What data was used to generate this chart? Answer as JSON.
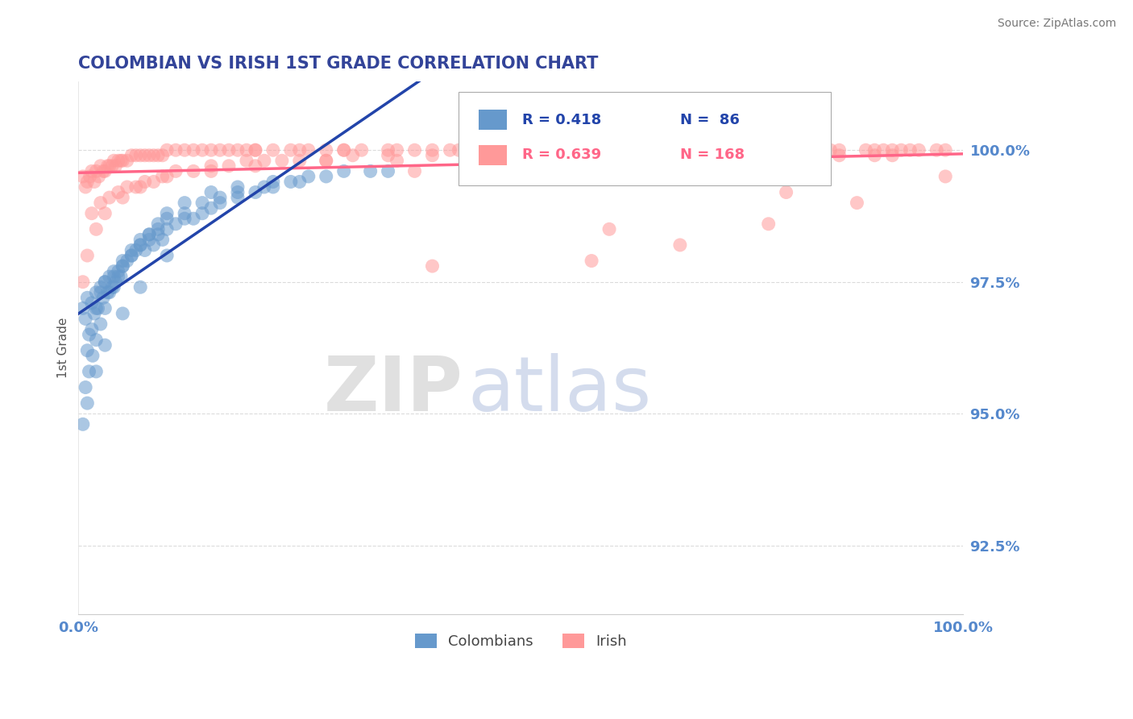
{
  "title": "COLOMBIAN VS IRISH 1ST GRADE CORRELATION CHART",
  "source": "Source: ZipAtlas.com",
  "xlabel_start": "0.0%",
  "xlabel_end": "100.0%",
  "ylabel": "1st Grade",
  "yticks": [
    92.5,
    95.0,
    97.5,
    100.0
  ],
  "ytick_labels": [
    "92.5%",
    "95.0%",
    "97.5%",
    "100.0%"
  ],
  "xlim": [
    0.0,
    1.0
  ],
  "ylim": [
    91.2,
    101.3
  ],
  "colombian_color": "#6699CC",
  "irish_color": "#FF9999",
  "colombian_line_color": "#2244AA",
  "irish_line_color": "#FF6688",
  "grid_color": "#CCCCCC",
  "title_color": "#334499",
  "tick_color": "#5588CC",
  "r_colombian": 0.418,
  "n_colombian": 86,
  "r_irish": 0.639,
  "n_irish": 168,
  "watermark_zip": "ZIP",
  "watermark_atlas": "atlas",
  "legend_labels": [
    "Colombians",
    "Irish"
  ],
  "colombian_x": [
    0.005,
    0.008,
    0.01,
    0.012,
    0.015,
    0.018,
    0.02,
    0.022,
    0.025,
    0.028,
    0.03,
    0.033,
    0.035,
    0.038,
    0.04,
    0.042,
    0.045,
    0.048,
    0.05,
    0.055,
    0.06,
    0.065,
    0.07,
    0.075,
    0.08,
    0.085,
    0.09,
    0.095,
    0.1,
    0.11,
    0.12,
    0.13,
    0.14,
    0.15,
    0.16,
    0.18,
    0.2,
    0.22,
    0.25,
    0.28,
    0.01,
    0.015,
    0.02,
    0.025,
    0.03,
    0.035,
    0.04,
    0.045,
    0.05,
    0.06,
    0.07,
    0.08,
    0.09,
    0.1,
    0.12,
    0.14,
    0.16,
    0.18,
    0.21,
    0.24,
    0.008,
    0.012,
    0.016,
    0.02,
    0.025,
    0.03,
    0.04,
    0.05,
    0.06,
    0.07,
    0.08,
    0.09,
    0.1,
    0.12,
    0.15,
    0.18,
    0.22,
    0.26,
    0.3,
    0.35,
    0.005,
    0.01,
    0.02,
    0.03,
    0.05,
    0.07,
    0.1,
    0.33
  ],
  "colombian_y": [
    97.0,
    96.8,
    97.2,
    96.5,
    97.1,
    96.9,
    97.3,
    97.0,
    97.4,
    97.2,
    97.5,
    97.3,
    97.6,
    97.4,
    97.6,
    97.5,
    97.7,
    97.6,
    97.8,
    97.9,
    98.0,
    98.1,
    98.2,
    98.1,
    98.3,
    98.2,
    98.4,
    98.3,
    98.5,
    98.6,
    98.7,
    98.7,
    98.8,
    98.9,
    99.0,
    99.1,
    99.2,
    99.3,
    99.4,
    99.5,
    96.2,
    96.6,
    97.0,
    97.3,
    97.5,
    97.3,
    97.7,
    97.6,
    97.9,
    98.1,
    98.3,
    98.4,
    98.5,
    98.7,
    98.8,
    99.0,
    99.1,
    99.2,
    99.3,
    99.4,
    95.5,
    95.8,
    96.1,
    96.4,
    96.7,
    97.0,
    97.4,
    97.8,
    98.0,
    98.2,
    98.4,
    98.6,
    98.8,
    99.0,
    99.2,
    99.3,
    99.4,
    99.5,
    99.6,
    99.6,
    94.8,
    95.2,
    95.8,
    96.3,
    96.9,
    97.4,
    98.0,
    99.6
  ],
  "irish_x": [
    0.005,
    0.008,
    0.01,
    0.013,
    0.015,
    0.018,
    0.02,
    0.023,
    0.025,
    0.028,
    0.03,
    0.033,
    0.035,
    0.038,
    0.04,
    0.042,
    0.045,
    0.048,
    0.05,
    0.055,
    0.06,
    0.065,
    0.07,
    0.075,
    0.08,
    0.085,
    0.09,
    0.095,
    0.1,
    0.11,
    0.12,
    0.13,
    0.14,
    0.15,
    0.16,
    0.17,
    0.18,
    0.19,
    0.2,
    0.22,
    0.24,
    0.26,
    0.28,
    0.3,
    0.32,
    0.35,
    0.38,
    0.4,
    0.43,
    0.46,
    0.5,
    0.54,
    0.58,
    0.62,
    0.66,
    0.7,
    0.74,
    0.78,
    0.82,
    0.86,
    0.9,
    0.94,
    0.98,
    0.97,
    0.95,
    0.93,
    0.91,
    0.89,
    0.85,
    0.8,
    0.75,
    0.68,
    0.61,
    0.55,
    0.48,
    0.42,
    0.36,
    0.3,
    0.25,
    0.2,
    0.015,
    0.025,
    0.035,
    0.045,
    0.055,
    0.065,
    0.075,
    0.085,
    0.095,
    0.11,
    0.13,
    0.15,
    0.17,
    0.19,
    0.21,
    0.23,
    0.25,
    0.28,
    0.31,
    0.35,
    0.4,
    0.45,
    0.5,
    0.56,
    0.62,
    0.68,
    0.74,
    0.8,
    0.86,
    0.92,
    0.005,
    0.01,
    0.02,
    0.03,
    0.05,
    0.07,
    0.1,
    0.15,
    0.2,
    0.28,
    0.36,
    0.44,
    0.52,
    0.6,
    0.68,
    0.76,
    0.84,
    0.92,
    0.38,
    0.52,
    0.66,
    0.8,
    0.5,
    0.7,
    0.9,
    0.4,
    0.6,
    0.8,
    0.58,
    0.78,
    0.98,
    0.68,
    0.88
  ],
  "irish_y": [
    99.5,
    99.3,
    99.4,
    99.5,
    99.6,
    99.4,
    99.6,
    99.5,
    99.7,
    99.6,
    99.6,
    99.7,
    99.7,
    99.7,
    99.8,
    99.7,
    99.8,
    99.8,
    99.8,
    99.8,
    99.9,
    99.9,
    99.9,
    99.9,
    99.9,
    99.9,
    99.9,
    99.9,
    100.0,
    100.0,
    100.0,
    100.0,
    100.0,
    100.0,
    100.0,
    100.0,
    100.0,
    100.0,
    100.0,
    100.0,
    100.0,
    100.0,
    100.0,
    100.0,
    100.0,
    100.0,
    100.0,
    100.0,
    100.0,
    100.0,
    100.0,
    100.0,
    100.0,
    100.0,
    100.0,
    100.0,
    100.0,
    100.0,
    100.0,
    100.0,
    100.0,
    100.0,
    100.0,
    100.0,
    100.0,
    100.0,
    100.0,
    100.0,
    100.0,
    100.0,
    100.0,
    100.0,
    100.0,
    100.0,
    100.0,
    100.0,
    100.0,
    100.0,
    100.0,
    100.0,
    98.8,
    99.0,
    99.1,
    99.2,
    99.3,
    99.3,
    99.4,
    99.4,
    99.5,
    99.6,
    99.6,
    99.7,
    99.7,
    99.8,
    99.8,
    99.8,
    99.8,
    99.8,
    99.9,
    99.9,
    99.9,
    99.9,
    99.9,
    99.9,
    99.9,
    99.9,
    99.9,
    99.9,
    99.9,
    99.9,
    97.5,
    98.0,
    98.5,
    98.8,
    99.1,
    99.3,
    99.5,
    99.6,
    99.7,
    99.8,
    99.8,
    99.9,
    99.9,
    99.9,
    99.9,
    100.0,
    100.0,
    100.0,
    99.6,
    99.7,
    99.8,
    99.9,
    99.7,
    99.8,
    99.9,
    97.8,
    98.5,
    99.2,
    97.9,
    98.6,
    99.5,
    98.2,
    99.0
  ]
}
